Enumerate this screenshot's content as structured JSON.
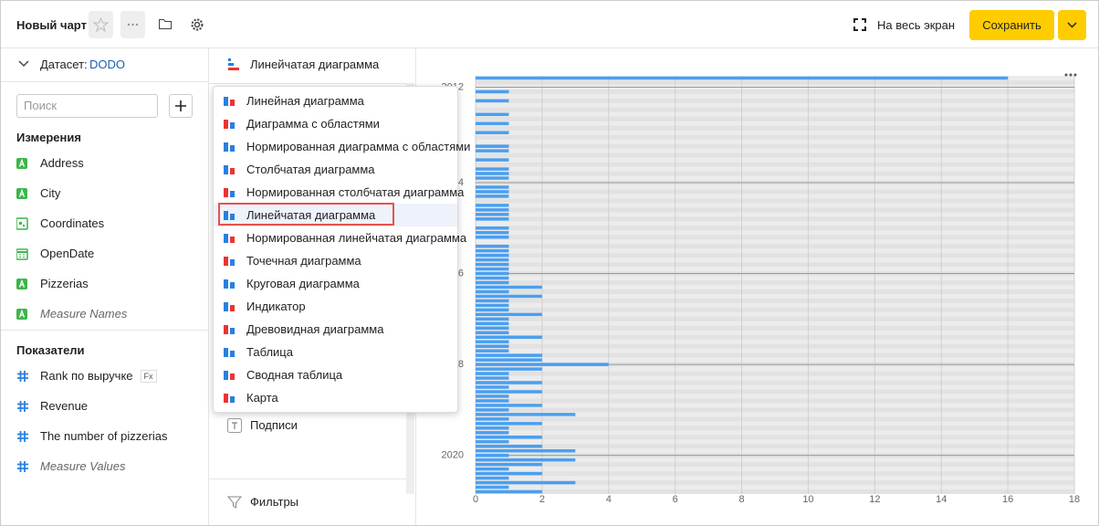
{
  "header": {
    "title": "Новый чарт",
    "fullscreen": "На весь экран",
    "save": "Сохранить"
  },
  "dataset": {
    "label": "Датасет:",
    "name": "DODO"
  },
  "search": {
    "placeholder": "Поиск"
  },
  "dimensions": {
    "title": "Измерения",
    "items": [
      "Address",
      "City",
      "Coordinates",
      "OpenDate",
      "Pizzerias",
      "Measure Names"
    ]
  },
  "measures": {
    "title": "Показатели",
    "items": [
      "Rank по выручке",
      "Revenue",
      "The number of pizzerias",
      "Measure Values"
    ],
    "formula_badge": "Fx"
  },
  "visualization": {
    "selected": "Линейчатая диаграмма",
    "labels_section": "Подписи",
    "filters_section": "Фильтры"
  },
  "menu": {
    "items": [
      "Линейная диаграмма",
      "Диаграмма с областями",
      "Нормированная диаграмма с областями",
      "Столбчатая диаграмма",
      "Нормированная столбчатая диаграмма",
      "Линейчатая диаграмма",
      "Нормированная линейчатая диаграмма",
      "Точечная диаграмма",
      "Круговая диаграмма",
      "Индикатор",
      "Древовидная диаграмма",
      "Таблица",
      "Сводная таблица",
      "Карта"
    ]
  },
  "chart_data": {
    "type": "hbar",
    "color": "#4a9ff0",
    "categories": [
      null,
      null,
      "2012",
      null,
      null,
      null,
      null,
      null,
      null,
      null,
      null,
      null,
      null,
      null,
      null,
      null,
      null,
      null,
      null,
      null,
      null,
      null,
      null,
      "2014",
      null,
      null,
      null,
      null,
      null,
      null,
      null,
      null,
      null,
      null,
      null,
      null,
      null,
      null,
      null,
      null,
      null,
      null,
      null,
      "2016",
      null,
      null,
      null,
      null,
      null,
      null,
      null,
      null,
      null,
      null,
      null,
      null,
      null,
      null,
      null,
      null,
      null,
      null,
      null,
      "2018",
      null,
      null,
      null,
      null,
      null,
      null,
      null,
      null,
      null,
      null,
      null,
      null,
      null,
      null,
      null,
      null,
      null,
      null,
      null,
      "2020",
      null,
      null,
      null,
      null,
      null,
      null,
      null,
      null
    ],
    "values": [
      16,
      0,
      0,
      1,
      0,
      1,
      0,
      0,
      1,
      0,
      1,
      0,
      1,
      0,
      0,
      1,
      1,
      0,
      1,
      0,
      1,
      1,
      1,
      0,
      1,
      1,
      1,
      0,
      1,
      1,
      1,
      1,
      0,
      1,
      1,
      1,
      0,
      1,
      1,
      1,
      1,
      1,
      1,
      1,
      1,
      1,
      2,
      1,
      2,
      1,
      1,
      1,
      2,
      1,
      1,
      1,
      1,
      2,
      1,
      1,
      1,
      2,
      2,
      4,
      2,
      1,
      1,
      2,
      1,
      2,
      1,
      1,
      2,
      1,
      3,
      1,
      2,
      1,
      1,
      2,
      1,
      2,
      3,
      1,
      3,
      2,
      1,
      2,
      1,
      3,
      1,
      2
    ],
    "xlim": [
      0,
      18
    ],
    "xticks": [
      0,
      2,
      4,
      6,
      8,
      10,
      12,
      14,
      16,
      18
    ],
    "grid": true
  }
}
